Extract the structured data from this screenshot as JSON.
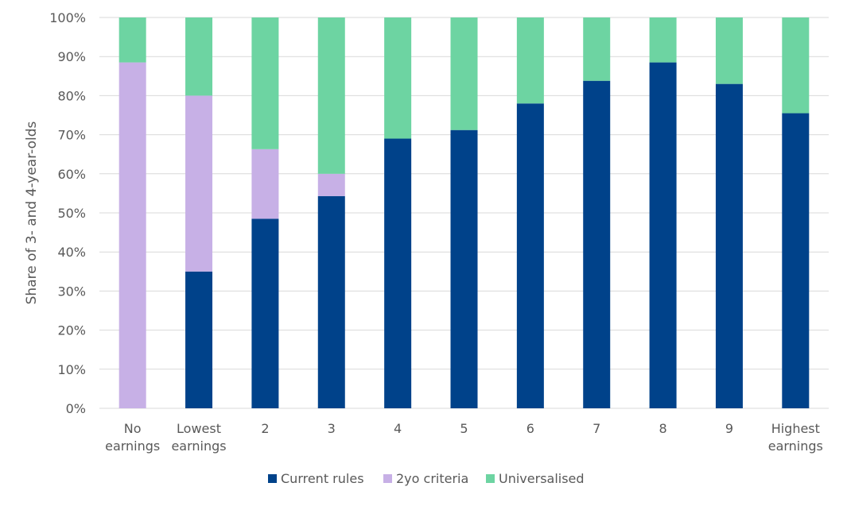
{
  "chart_data": {
    "type": "bar",
    "stacked": true,
    "title": "",
    "ylabel": "Share of 3- and 4-year-olds",
    "xlabel": "",
    "ylim": [
      0,
      100
    ],
    "y_tick_labels": [
      "0%",
      "10%",
      "20%",
      "30%",
      "40%",
      "50%",
      "60%",
      "70%",
      "80%",
      "90%",
      "100%"
    ],
    "categories": [
      "No earnings",
      "Lowest earnings",
      "2",
      "3",
      "4",
      "5",
      "6",
      "7",
      "8",
      "9",
      "Highest earnings"
    ],
    "category_lines": [
      [
        "No",
        "earnings"
      ],
      [
        "Lowest",
        "earnings"
      ],
      [
        "2"
      ],
      [
        "3"
      ],
      [
        "4"
      ],
      [
        "5"
      ],
      [
        "6"
      ],
      [
        "7"
      ],
      [
        "8"
      ],
      [
        "9"
      ],
      [
        "Highest",
        "earnings"
      ]
    ],
    "series": [
      {
        "name": "Current rules",
        "color": "#00428a",
        "values": [
          0,
          35,
          48.5,
          54.3,
          69,
          71.2,
          78,
          83.8,
          88.5,
          83,
          75.5
        ]
      },
      {
        "name": "2yo criteria",
        "color": "#c7b0e6",
        "values": [
          88.5,
          45,
          17.8,
          5.7,
          0,
          0,
          0,
          0,
          0,
          0,
          0
        ]
      },
      {
        "name": "Universalised",
        "color": "#6dd4a2",
        "values": [
          11.5,
          20,
          33.7,
          40,
          31,
          28.8,
          22,
          16.2,
          11.5,
          17,
          24.5
        ]
      }
    ],
    "grid": true,
    "legend": "bottom-center"
  }
}
